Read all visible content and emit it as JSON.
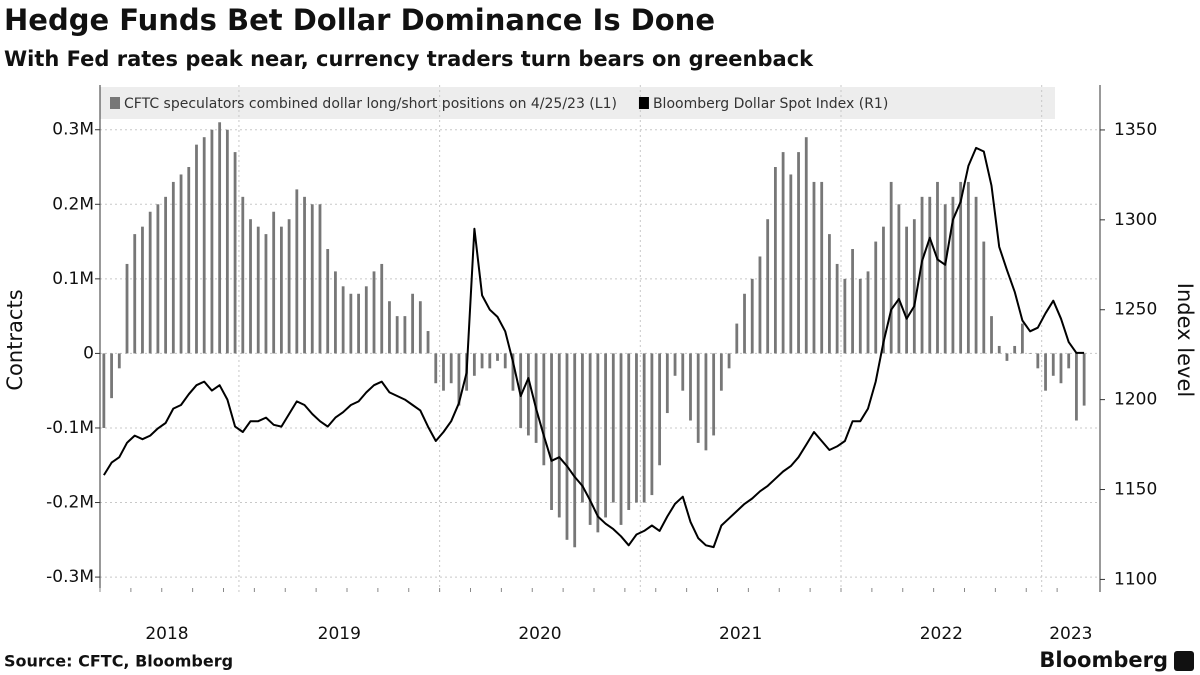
{
  "chart_data": {
    "type": "combo",
    "title": "Hedge Funds Bet Dollar Dominance Is Done",
    "subtitle": "With Fed rates peak near, currency traders turn bears on greenback",
    "ylabel": "Contracts",
    "y2label": "Index level",
    "source": "Source: CFTC, Bloomberg",
    "brand": "Bloomberg",
    "categories": [
      "2018",
      "2018",
      "2018",
      "2018",
      "2018",
      "2018",
      "2018",
      "2018",
      "2018",
      "2018",
      "2018",
      "2018",
      "2018",
      "2018",
      "2018",
      "2018",
      "2018",
      "2018",
      "2019",
      "2019",
      "2019",
      "2019",
      "2019",
      "2019",
      "2019",
      "2019",
      "2019",
      "2019",
      "2019",
      "2019",
      "2019",
      "2019",
      "2019",
      "2019",
      "2019",
      "2019",
      "2019",
      "2019",
      "2019",
      "2019",
      "2019",
      "2019",
      "2019",
      "2019",
      "2020",
      "2020",
      "2020",
      "2020",
      "2020",
      "2020",
      "2020",
      "2020",
      "2020",
      "2020",
      "2020",
      "2020",
      "2020",
      "2020",
      "2020",
      "2020",
      "2020",
      "2020",
      "2020",
      "2020",
      "2020",
      "2020",
      "2020",
      "2020",
      "2020",
      "2020",
      "2021",
      "2021",
      "2021",
      "2021",
      "2021",
      "2021",
      "2021",
      "2021",
      "2021",
      "2021",
      "2021",
      "2021",
      "2021",
      "2021",
      "2021",
      "2021",
      "2021",
      "2021",
      "2021",
      "2021",
      "2021",
      "2021",
      "2021",
      "2021",
      "2021",
      "2021",
      "2022",
      "2022",
      "2022",
      "2022",
      "2022",
      "2022",
      "2022",
      "2022",
      "2022",
      "2022",
      "2022",
      "2022",
      "2022",
      "2022",
      "2022",
      "2022",
      "2022",
      "2022",
      "2022",
      "2022",
      "2022",
      "2022",
      "2022",
      "2022",
      "2022",
      "2022",
      "2023",
      "2023",
      "2023",
      "2023",
      "2023",
      "2023"
    ],
    "series": [
      {
        "name": "CFTC speculators combined dollar long/short positions on 4/25/23 (L1)",
        "type": "bar",
        "color": "#777777",
        "values": [
          -100000,
          -60000,
          -20000,
          120000,
          160000,
          170000,
          190000,
          200000,
          210000,
          230000,
          240000,
          250000,
          280000,
          290000,
          300000,
          310000,
          300000,
          270000,
          210000,
          180000,
          170000,
          160000,
          190000,
          170000,
          180000,
          220000,
          210000,
          200000,
          200000,
          140000,
          110000,
          90000,
          80000,
          80000,
          90000,
          110000,
          120000,
          70000,
          50000,
          50000,
          80000,
          70000,
          30000,
          -40000,
          -50000,
          -40000,
          -70000,
          -50000,
          -30000,
          -20000,
          -20000,
          -10000,
          -20000,
          -50000,
          -100000,
          -110000,
          -120000,
          -150000,
          -210000,
          -220000,
          -250000,
          -260000,
          -200000,
          -230000,
          -240000,
          -220000,
          -200000,
          -230000,
          -210000,
          -200000,
          -200000,
          -190000,
          -150000,
          -80000,
          -30000,
          -50000,
          -90000,
          -120000,
          -130000,
          -110000,
          -50000,
          -20000,
          40000,
          80000,
          100000,
          130000,
          180000,
          250000,
          270000,
          240000,
          270000,
          290000,
          230000,
          230000,
          160000,
          120000,
          100000,
          140000,
          100000,
          110000,
          150000,
          170000,
          230000,
          200000,
          170000,
          180000,
          210000,
          210000,
          230000,
          200000,
          210000,
          230000,
          230000,
          210000,
          150000,
          50000,
          10000,
          -10000,
          10000,
          40000,
          0,
          -20000,
          -50000,
          -30000,
          -40000,
          -20000,
          -90000,
          -70000
        ]
      },
      {
        "name": "Bloomberg Dollar Spot Index (R1)",
        "type": "line",
        "axis": "y2",
        "color": "#000000",
        "values": [
          1158,
          1165,
          1168,
          1176,
          1180,
          1178,
          1180,
          1184,
          1187,
          1195,
          1197,
          1203,
          1208,
          1210,
          1205,
          1208,
          1200,
          1185,
          1182,
          1188,
          1188,
          1190,
          1186,
          1185,
          1192,
          1199,
          1197,
          1192,
          1188,
          1185,
          1190,
          1193,
          1197,
          1199,
          1204,
          1208,
          1210,
          1204,
          1202,
          1200,
          1197,
          1194,
          1185,
          1177,
          1182,
          1188,
          1198,
          1215,
          1295,
          1258,
          1250,
          1246,
          1238,
          1221,
          1202,
          1212,
          1195,
          1180,
          1166,
          1168,
          1163,
          1157,
          1152,
          1144,
          1135,
          1131,
          1128,
          1124,
          1119,
          1125,
          1127,
          1130,
          1127,
          1135,
          1142,
          1146,
          1132,
          1123,
          1119,
          1118,
          1130,
          1134,
          1138,
          1142,
          1145,
          1149,
          1152,
          1156,
          1160,
          1163,
          1168,
          1175,
          1182,
          1177,
          1172,
          1174,
          1177,
          1188,
          1188,
          1195,
          1210,
          1232,
          1250,
          1256,
          1245,
          1252,
          1277,
          1290,
          1278,
          1275,
          1300,
          1310,
          1330,
          1340,
          1338,
          1319,
          1285,
          1272,
          1260,
          1244,
          1238,
          1240,
          1248,
          1255,
          1245,
          1232,
          1226,
          1226
        ]
      }
    ],
    "ylim": [
      -320000,
      360000
    ],
    "yticks": [
      {
        "value": -300000,
        "label": "-0.3M"
      },
      {
        "value": -200000,
        "label": "-0.2M"
      },
      {
        "value": -100000,
        "label": "-0.1M"
      },
      0,
      {
        "value": 100000,
        "label": "0.1M"
      },
      {
        "value": 200000,
        "label": "0.2M"
      },
      {
        "value": 300000,
        "label": "0.3M"
      }
    ],
    "y2lim": [
      1093,
      1375
    ],
    "y2ticks": [
      1100,
      1150,
      1200,
      1250,
      1300,
      1350
    ],
    "grid": true
  }
}
